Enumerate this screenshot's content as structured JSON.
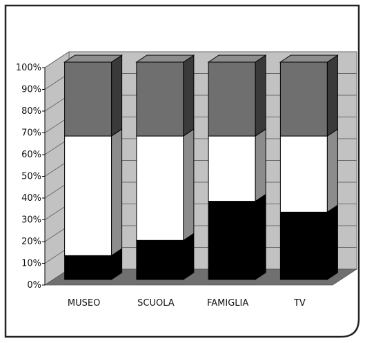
{
  "chart_data": {
    "type": "bar",
    "stacked": true,
    "percent": true,
    "three_d": true,
    "categories": [
      "MUSEO",
      "SCUOLA",
      "FAMIGLIA",
      "TV"
    ],
    "series": [
      {
        "values": [
          11,
          18,
          36,
          31
        ],
        "color": "#000000"
      },
      {
        "values": [
          55,
          48,
          30,
          35
        ],
        "color": "#ffffff"
      },
      {
        "values": [
          34,
          34,
          34,
          34
        ],
        "color": "#6f6f6f"
      }
    ],
    "y_ticks": [
      "0%",
      "10%",
      "20%",
      "30%",
      "40%",
      "50%",
      "60%",
      "70%",
      "80%",
      "90%",
      "100%"
    ],
    "ylim": [
      0,
      100
    ],
    "grid": true,
    "legend": "none",
    "colors": {
      "wall": "#c2c2c2",
      "floor": "#707070",
      "gridline": "#6a6a6a",
      "frame": "#222222"
    }
  }
}
